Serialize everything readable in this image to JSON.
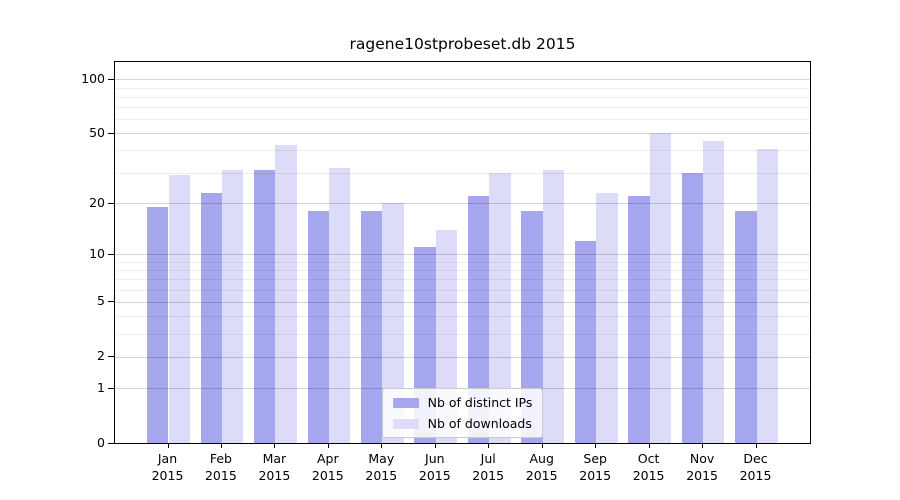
{
  "title": "ragene10stprobeset.db 2015",
  "chart_data": {
    "type": "bar",
    "title": "ragene10stprobeset.db 2015",
    "xlabel": "",
    "ylabel": "",
    "y_scale": "log1p",
    "y_axis_note": "logarithmic-style axis with labeled ticks 0,1,2,5,10,20,50,100; position ~ log10(1+v)",
    "axis_top": 125,
    "y_ticks": [
      0,
      1,
      2,
      5,
      10,
      20,
      50,
      100
    ],
    "y_minor_ticks": [
      3,
      4,
      6,
      7,
      8,
      9,
      30,
      40,
      60,
      70,
      80,
      90
    ],
    "grid": true,
    "categories": [
      "Jan 2015",
      "Feb 2015",
      "Mar 2015",
      "Apr 2015",
      "May 2015",
      "Jun 2015",
      "Jul 2015",
      "Aug 2015",
      "Sep 2015",
      "Oct 2015",
      "Nov 2015",
      "Dec 2015"
    ],
    "series": [
      {
        "name": "Nb of distinct IPs",
        "color": "#a6a6ef",
        "values": [
          19,
          23,
          31,
          18,
          18,
          11,
          22,
          18,
          12,
          22,
          30,
          18
        ]
      },
      {
        "name": "Nb of downloads",
        "color": "#dcdcf9",
        "values": [
          29,
          31,
          43,
          32,
          20,
          14,
          30,
          31,
          23,
          50,
          45,
          41
        ]
      }
    ],
    "legend": {
      "position": "lower center",
      "entries": [
        "Nb of distinct IPs",
        "Nb of downloads"
      ]
    }
  }
}
